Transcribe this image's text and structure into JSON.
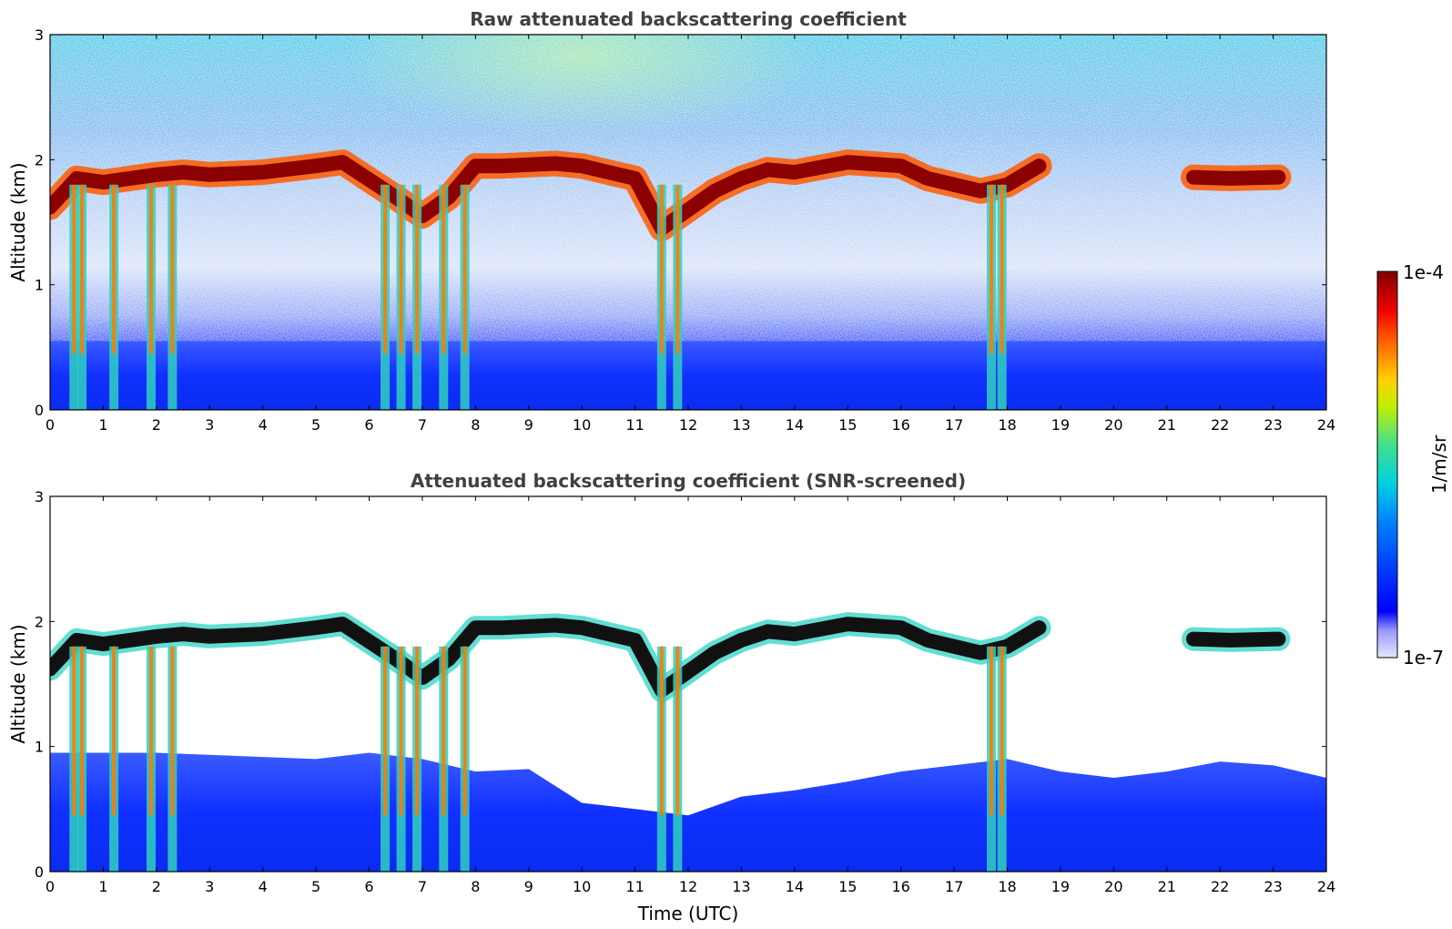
{
  "chart_data": [
    {
      "type": "heatmap",
      "title": "Raw attenuated backscattering coefficient",
      "xlabel": "",
      "ylabel": "Altitude (km)",
      "xlim": [
        0,
        24
      ],
      "ylim": [
        0,
        3
      ],
      "xticks": [
        "0",
        "1",
        "2",
        "3",
        "4",
        "5",
        "6",
        "7",
        "8",
        "9",
        "10",
        "11",
        "12",
        "13",
        "14",
        "15",
        "16",
        "17",
        "18",
        "19",
        "20",
        "21",
        "22",
        "23",
        "24"
      ],
      "yticks": [
        "0",
        "1",
        "2",
        "3"
      ],
      "colorbar": {
        "label": "1/m/sr",
        "min_label": "1e-7",
        "max_label": "1e-4",
        "min": 1e-07,
        "max": 0.0001,
        "scale": "log",
        "colormap": "jet"
      },
      "cloud_layer": [
        {
          "x": 0.0,
          "y": 1.62
        },
        {
          "x": 0.5,
          "y": 1.85
        },
        {
          "x": 1.0,
          "y": 1.82
        },
        {
          "x": 1.5,
          "y": 1.85
        },
        {
          "x": 2.0,
          "y": 1.88
        },
        {
          "x": 2.5,
          "y": 1.9
        },
        {
          "x": 3.0,
          "y": 1.88
        },
        {
          "x": 4.0,
          "y": 1.9
        },
        {
          "x": 5.0,
          "y": 1.95
        },
        {
          "x": 5.5,
          "y": 1.98
        },
        {
          "x": 6.5,
          "y": 1.7
        },
        {
          "x": 7.0,
          "y": 1.55
        },
        {
          "x": 7.5,
          "y": 1.7
        },
        {
          "x": 8.0,
          "y": 1.95
        },
        {
          "x": 8.5,
          "y": 1.95
        },
        {
          "x": 9.5,
          "y": 1.97
        },
        {
          "x": 10.0,
          "y": 1.95
        },
        {
          "x": 10.5,
          "y": 1.9
        },
        {
          "x": 11.0,
          "y": 1.85
        },
        {
          "x": 11.5,
          "y": 1.45
        },
        {
          "x": 12.0,
          "y": 1.6
        },
        {
          "x": 12.5,
          "y": 1.75
        },
        {
          "x": 13.0,
          "y": 1.85
        },
        {
          "x": 13.5,
          "y": 1.92
        },
        {
          "x": 14.0,
          "y": 1.9
        },
        {
          "x": 15.0,
          "y": 1.98
        },
        {
          "x": 16.0,
          "y": 1.95
        },
        {
          "x": 16.5,
          "y": 1.85
        },
        {
          "x": 17.0,
          "y": 1.8
        },
        {
          "x": 17.5,
          "y": 1.75
        },
        {
          "x": 18.0,
          "y": 1.8
        },
        {
          "x": 18.6,
          "y": 1.95
        },
        {
          "x": 21.5,
          "y": 1.86
        },
        {
          "x": 22.2,
          "y": 1.85
        },
        {
          "x": 23.1,
          "y": 1.86
        }
      ],
      "precipitation_fallstreaks_utc": [
        0.45,
        0.6,
        1.2,
        1.9,
        2.3,
        6.3,
        6.6,
        6.9,
        7.4,
        7.8,
        11.5,
        11.8,
        17.7,
        17.9
      ]
    },
    {
      "type": "heatmap",
      "title": "Attenuated backscattering coefficient (SNR-screened)",
      "xlabel": "Time (UTC)",
      "ylabel": "Altitude (km)",
      "xlim": [
        0,
        24
      ],
      "ylim": [
        0,
        3
      ],
      "xticks": [
        "0",
        "1",
        "2",
        "3",
        "4",
        "5",
        "6",
        "7",
        "8",
        "9",
        "10",
        "11",
        "12",
        "13",
        "14",
        "15",
        "16",
        "17",
        "18",
        "19",
        "20",
        "21",
        "22",
        "23",
        "24"
      ],
      "yticks": [
        "0",
        "1",
        "2",
        "3"
      ],
      "boundary_layer_top": [
        {
          "x": 0.0,
          "y": 0.95
        },
        {
          "x": 2.0,
          "y": 0.95
        },
        {
          "x": 5.0,
          "y": 0.9
        },
        {
          "x": 6.0,
          "y": 0.95
        },
        {
          "x": 7.0,
          "y": 0.9
        },
        {
          "x": 8.0,
          "y": 0.8
        },
        {
          "x": 9.0,
          "y": 0.82
        },
        {
          "x": 10.0,
          "y": 0.55
        },
        {
          "x": 11.0,
          "y": 0.5
        },
        {
          "x": 12.0,
          "y": 0.45
        },
        {
          "x": 13.0,
          "y": 0.6
        },
        {
          "x": 14.0,
          "y": 0.65
        },
        {
          "x": 15.0,
          "y": 0.72
        },
        {
          "x": 16.0,
          "y": 0.8
        },
        {
          "x": 17.0,
          "y": 0.85
        },
        {
          "x": 18.0,
          "y": 0.9
        },
        {
          "x": 19.0,
          "y": 0.8
        },
        {
          "x": 20.0,
          "y": 0.75
        },
        {
          "x": 21.0,
          "y": 0.8
        },
        {
          "x": 22.0,
          "y": 0.88
        },
        {
          "x": 23.0,
          "y": 0.85
        },
        {
          "x": 24.0,
          "y": 0.75
        }
      ]
    }
  ]
}
